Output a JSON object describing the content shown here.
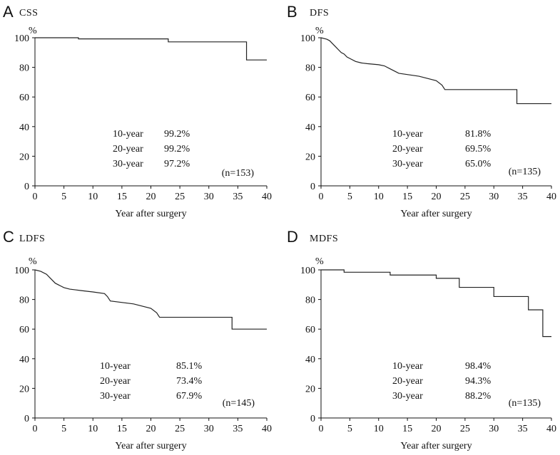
{
  "chart_data": [
    {
      "type": "line",
      "panel_letter": "A",
      "title": "CSS",
      "ylabel": "%",
      "xlabel": "Year after surgery",
      "xlim": [
        0,
        40
      ],
      "ylim": [
        0,
        100
      ],
      "x_ticks": [
        0,
        5,
        10,
        15,
        20,
        25,
        30,
        35,
        40
      ],
      "y_ticks": [
        0,
        20,
        40,
        60,
        80,
        100
      ],
      "series": [
        {
          "name": "CSS",
          "step": true,
          "x": [
            0,
            7.5,
            7.5,
            23,
            23,
            36.5,
            36.5,
            40
          ],
          "y": [
            100,
            100,
            99.2,
            99.2,
            97.2,
            97.2,
            85,
            85
          ]
        }
      ],
      "annotations": {
        "rates": [
          {
            "label": "10-year",
            "value": "99.2%"
          },
          {
            "label": "20-year",
            "value": "99.2%"
          },
          {
            "label": "30-year",
            "value": "97.2%"
          }
        ],
        "n": "(n=153)"
      }
    },
    {
      "type": "line",
      "panel_letter": "B",
      "title": "DFS",
      "ylabel": "%",
      "xlabel": "Year after surgery",
      "xlim": [
        0,
        40
      ],
      "ylim": [
        0,
        100
      ],
      "x_ticks": [
        0,
        5,
        10,
        15,
        20,
        25,
        30,
        35,
        40
      ],
      "y_ticks": [
        0,
        20,
        40,
        60,
        80,
        100
      ],
      "series": [
        {
          "name": "DFS",
          "step": true,
          "x": [
            0,
            1,
            1.5,
            2,
            2.5,
            3,
            3.5,
            4,
            4.5,
            5,
            6,
            7,
            8,
            10,
            11,
            12,
            13,
            13.5,
            17,
            20,
            21,
            21.5,
            34,
            34,
            40
          ],
          "y": [
            100,
            99,
            98,
            96,
            94,
            92,
            90,
            89,
            87,
            86,
            84,
            83,
            82.5,
            81.8,
            81,
            79,
            77,
            76,
            74,
            71,
            68,
            65,
            65,
            55.5,
            55.5
          ]
        }
      ],
      "annotations": {
        "rates": [
          {
            "label": "10-year",
            "value": "81.8%"
          },
          {
            "label": "20-year",
            "value": "69.5%"
          },
          {
            "label": "30-year",
            "value": "65.0%"
          }
        ],
        "n": "(n=135)"
      }
    },
    {
      "type": "line",
      "panel_letter": "C",
      "title": "LDFS",
      "ylabel": "%",
      "xlabel": "Year after surgery",
      "xlim": [
        0,
        40
      ],
      "ylim": [
        0,
        100
      ],
      "x_ticks": [
        0,
        5,
        10,
        15,
        20,
        25,
        30,
        35,
        40
      ],
      "y_ticks": [
        0,
        20,
        40,
        60,
        80,
        100
      ],
      "series": [
        {
          "name": "LDFS",
          "step": true,
          "x": [
            0,
            1,
            2,
            2.5,
            3,
            3.5,
            4,
            4.5,
            5,
            6,
            7,
            8,
            10,
            12,
            12.5,
            13,
            17,
            20,
            21,
            21.5,
            34,
            34,
            40
          ],
          "y": [
            100,
            99,
            97,
            95,
            93,
            91,
            90,
            89,
            88,
            87,
            86.5,
            86,
            85.1,
            84,
            82,
            79,
            77,
            74,
            71,
            68,
            68,
            60,
            60
          ]
        }
      ],
      "annotations": {
        "rates": [
          {
            "label": "10-year",
            "value": "85.1%"
          },
          {
            "label": "20-year",
            "value": "73.4%"
          },
          {
            "label": "30-year",
            "value": "67.9%"
          }
        ],
        "n": "(n=145)"
      }
    },
    {
      "type": "line",
      "panel_letter": "D",
      "title": "MDFS",
      "ylabel": "%",
      "xlabel": "Year after surgery",
      "xlim": [
        0,
        40
      ],
      "ylim": [
        0,
        100
      ],
      "x_ticks": [
        0,
        5,
        10,
        15,
        20,
        25,
        30,
        35,
        40
      ],
      "y_ticks": [
        0,
        20,
        40,
        60,
        80,
        100
      ],
      "series": [
        {
          "name": "MDFS",
          "step": true,
          "x": [
            0,
            4,
            4,
            12,
            12,
            20,
            20,
            24,
            24,
            30,
            30,
            36,
            36,
            38.5,
            38.5,
            40
          ],
          "y": [
            100,
            100,
            98.4,
            98.4,
            96.5,
            96.5,
            94.3,
            94.3,
            88.2,
            88.2,
            82,
            82,
            73,
            73,
            55,
            55
          ]
        }
      ],
      "annotations": {
        "rates": [
          {
            "label": "10-year",
            "value": "98.4%"
          },
          {
            "label": "20-year",
            "value": "94.3%"
          },
          {
            "label": "30-year",
            "value": "88.2%"
          }
        ],
        "n": "(n=135)"
      }
    }
  ]
}
